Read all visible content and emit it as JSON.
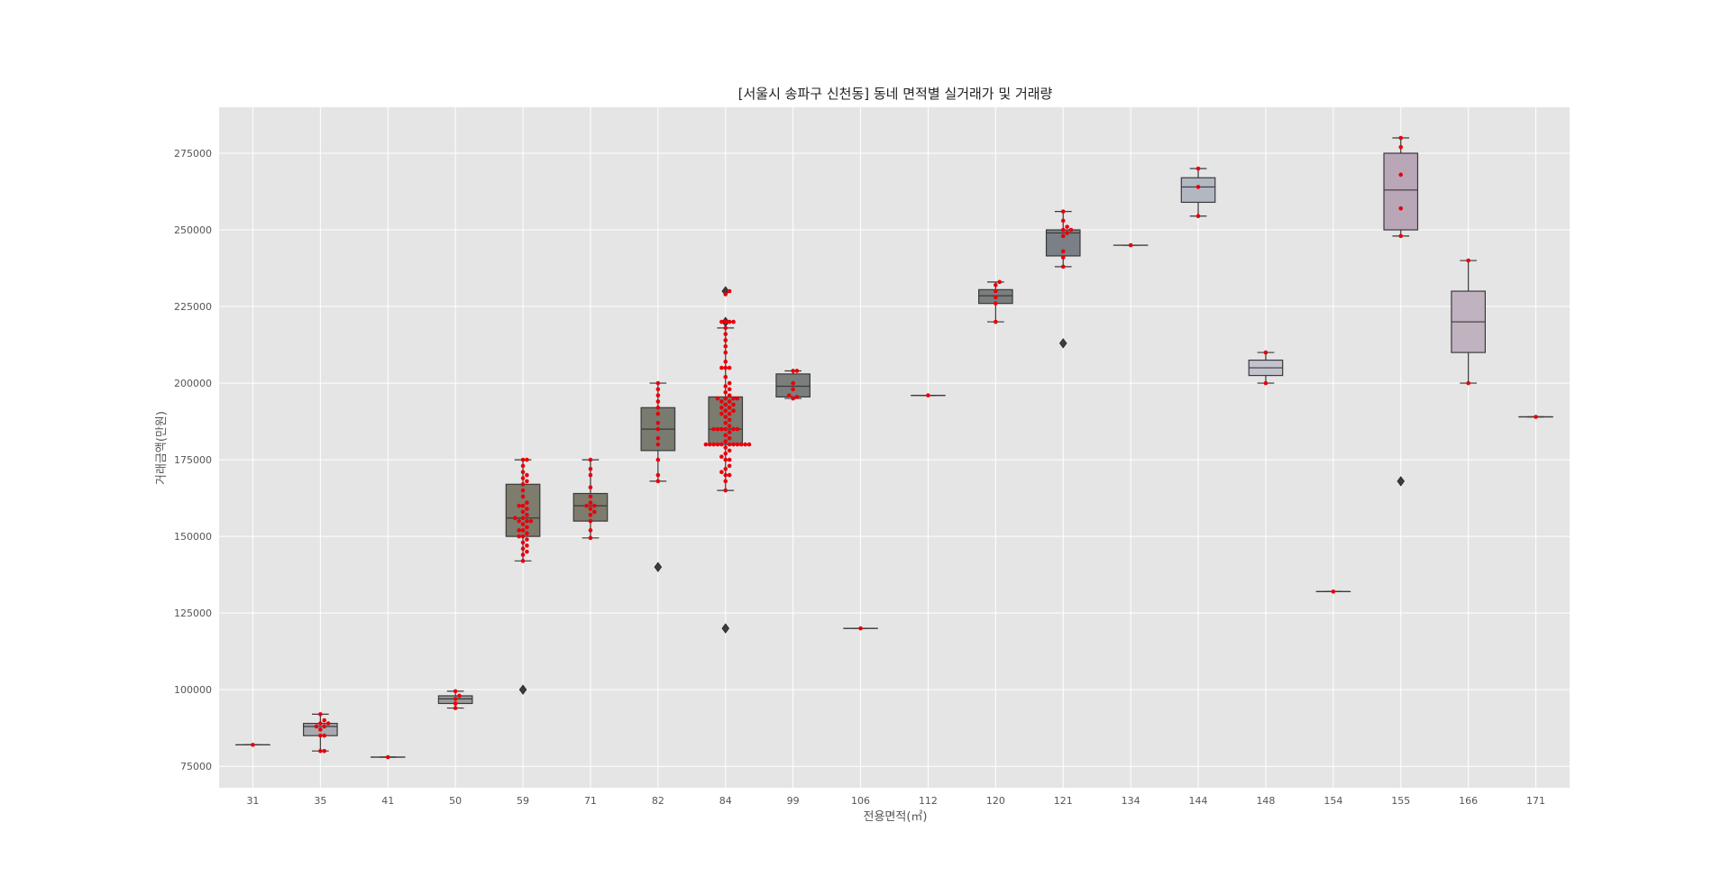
{
  "chart_data": {
    "type": "box",
    "title": "[서울시 송파구 신천동] 동네 면적별 실거래가 및 거래량",
    "xlabel": "전용면적(㎡)",
    "ylabel": "거래금액(만원)",
    "ylim": [
      68000,
      290000
    ],
    "yticks": [
      75000,
      100000,
      125000,
      150000,
      175000,
      200000,
      225000,
      250000,
      275000
    ],
    "grid": true,
    "colors": {
      "background": "#e5e5e5",
      "grid": "#ffffff",
      "point": "#e8000b",
      "box_edge": "#3a3a3a"
    },
    "categories": [
      "31",
      "35",
      "41",
      "50",
      "59",
      "71",
      "82",
      "84",
      "99",
      "106",
      "112",
      "120",
      "121",
      "134",
      "144",
      "148",
      "154",
      "155",
      "166",
      "171"
    ],
    "boxes": [
      {
        "q1": 82000,
        "median": 82000,
        "q3": 82000,
        "whislo": 82000,
        "whishi": 82000,
        "fliers": [],
        "color": "#a8a8a8"
      },
      {
        "q1": 85000,
        "median": 88000,
        "q3": 89000,
        "whislo": 80000,
        "whishi": 92000,
        "fliers": [],
        "color": "#a9aab1"
      },
      {
        "q1": 78000,
        "median": 78000,
        "q3": 78000,
        "whislo": 78000,
        "whishi": 78000,
        "fliers": [],
        "color": "#a8a8a8"
      },
      {
        "q1": 95500,
        "median": 97000,
        "q3": 98000,
        "whislo": 94000,
        "whishi": 99500,
        "fliers": [],
        "color": "#9b9b9b"
      },
      {
        "q1": 150000,
        "median": 156000,
        "q3": 167000,
        "whislo": 142000,
        "whishi": 175000,
        "fliers": [
          100000
        ],
        "color": "#7d7c6d"
      },
      {
        "q1": 155000,
        "median": 160000,
        "q3": 164000,
        "whislo": 149500,
        "whishi": 175000,
        "fliers": [],
        "color": "#7d7c6d"
      },
      {
        "q1": 178000,
        "median": 185000,
        "q3": 192000,
        "whislo": 168000,
        "whishi": 200000,
        "fliers": [
          140000
        ],
        "color": "#7a7b70"
      },
      {
        "q1": 180000,
        "median": 185000,
        "q3": 195500,
        "whislo": 165000,
        "whishi": 218000,
        "fliers": [
          230000,
          220000,
          120000
        ],
        "color": "#7b7c70"
      },
      {
        "q1": 195500,
        "median": 199000,
        "q3": 203000,
        "whislo": 195000,
        "whishi": 204000,
        "fliers": [],
        "color": "#7a7f7c"
      },
      {
        "q1": 120000,
        "median": 120000,
        "q3": 120000,
        "whislo": 120000,
        "whishi": 120000,
        "fliers": [],
        "color": "#a8a8a8"
      },
      {
        "q1": 196000,
        "median": 196000,
        "q3": 196000,
        "whislo": 196000,
        "whishi": 196000,
        "fliers": [],
        "color": "#a8a8a8"
      },
      {
        "q1": 226000,
        "median": 228500,
        "q3": 230500,
        "whislo": 220000,
        "whishi": 233000,
        "fliers": [],
        "color": "#7a7f7e"
      },
      {
        "q1": 241500,
        "median": 249000,
        "q3": 250000,
        "whislo": 238000,
        "whishi": 256000,
        "fliers": [
          213000
        ],
        "color": "#7a8085"
      },
      {
        "q1": 245000,
        "median": 245000,
        "q3": 245000,
        "whislo": 245000,
        "whishi": 245000,
        "fliers": [],
        "color": "#a8a8a8"
      },
      {
        "q1": 259000,
        "median": 264000,
        "q3": 267000,
        "whislo": 254500,
        "whishi": 270000,
        "fliers": [],
        "color": "#b2b8c2"
      },
      {
        "q1": 202500,
        "median": 205000,
        "q3": 207500,
        "whislo": 200000,
        "whishi": 210000,
        "fliers": [],
        "color": "#c3c3ce"
      },
      {
        "q1": 132000,
        "median": 132000,
        "q3": 132000,
        "whislo": 132000,
        "whishi": 132000,
        "fliers": [],
        "color": "#a8a8a8"
      },
      {
        "q1": 250000,
        "median": 263000,
        "q3": 275000,
        "whislo": 248000,
        "whishi": 280000,
        "fliers": [
          168000
        ],
        "color": "#b9a7b8"
      },
      {
        "q1": 210000,
        "median": 220000,
        "q3": 230000,
        "whislo": 200000,
        "whishi": 240000,
        "fliers": [],
        "color": "#c0b3bf"
      },
      {
        "q1": 189000,
        "median": 189000,
        "q3": 189000,
        "whislo": 189000,
        "whishi": 189000,
        "fliers": [],
        "color": "#a8a8a8"
      }
    ],
    "points": [
      [
        82000
      ],
      [
        80000,
        80000,
        85000,
        85000,
        87000,
        88000,
        88000,
        89000,
        89000,
        90000,
        92000
      ],
      [
        78000
      ],
      [
        94000,
        95500,
        97000,
        98000,
        99500
      ],
      [
        142000,
        144000,
        145000,
        146000,
        147000,
        148000,
        149000,
        150000,
        150000,
        151000,
        152000,
        152000,
        153000,
        154000,
        155000,
        155000,
        155000,
        156000,
        156000,
        157000,
        158000,
        159000,
        160000,
        160000,
        161000,
        163000,
        165000,
        167000,
        168000,
        169000,
        170000,
        171000,
        173000,
        175000,
        175000
      ],
      [
        149500,
        152000,
        155000,
        157000,
        158000,
        159000,
        160000,
        160000,
        161000,
        163000,
        166000,
        170000,
        172000,
        175000
      ],
      [
        168000,
        170000,
        175000,
        180000,
        182000,
        185000,
        187000,
        190000,
        192000,
        194000,
        196000,
        198000,
        200000
      ],
      [
        165000,
        168000,
        170000,
        170000,
        171000,
        172000,
        173000,
        175000,
        175000,
        176000,
        177000,
        178000,
        179000,
        180000,
        180000,
        180000,
        180000,
        180000,
        180000,
        180000,
        180000,
        180000,
        180000,
        180000,
        181000,
        182000,
        183000,
        184000,
        185000,
        185000,
        185000,
        185000,
        185000,
        185000,
        186000,
        187000,
        188000,
        189000,
        190000,
        190000,
        191000,
        191000,
        192000,
        192000,
        193000,
        193000,
        194000,
        194000,
        195000,
        195000,
        195000,
        195000,
        196000,
        197000,
        198000,
        199000,
        200000,
        202000,
        205000,
        205000,
        205000,
        207000,
        210000,
        212000,
        214000,
        216000,
        218000,
        220000,
        220000,
        220000,
        220000,
        229000,
        230000
      ],
      [
        195000,
        195500,
        196000,
        198000,
        200000,
        204000,
        204000
      ],
      [
        120000
      ],
      [
        196000
      ],
      [
        220000,
        226000,
        228000,
        230000,
        232000,
        233000
      ],
      [
        238000,
        241000,
        243000,
        248000,
        249000,
        250000,
        250000,
        251000,
        253000,
        256000
      ],
      [
        245000
      ],
      [
        254500,
        264000,
        270000
      ],
      [
        200000,
        210000
      ],
      [
        132000
      ],
      [
        248000,
        257000,
        268000,
        277000,
        280000
      ],
      [
        200000,
        240000
      ],
      [
        189000
      ]
    ]
  }
}
